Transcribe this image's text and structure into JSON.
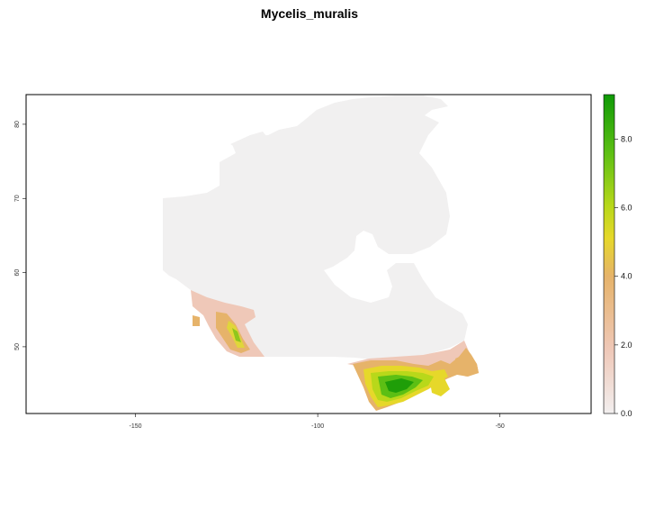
{
  "map": {
    "title": "Mycelis_muralis",
    "x_ticks": [
      "-150",
      "-100",
      "-50"
    ],
    "y_ticks": [
      "50",
      "60",
      "70",
      "80"
    ],
    "x_tick_values": [
      -150,
      -100,
      -50
    ],
    "y_tick_values": [
      50,
      60,
      70,
      80
    ],
    "extent": {
      "lon": [
        -180,
        -25
      ],
      "lat": [
        41,
        84
      ]
    },
    "colors": {
      "background": "#f1f0f0",
      "frame": "#000000",
      "low": "#f2efef",
      "mid_pink": "#efc8b8",
      "orange": "#e6b36a",
      "yellow": "#e6d82a",
      "yellow_green": "#b8d81a",
      "green": "#5cbf14",
      "dark_green": "#1f9e08"
    }
  },
  "legend": {
    "ticks": [
      "0.0",
      "2.0",
      "4.0",
      "6.0",
      "8.0"
    ],
    "tick_values": [
      0,
      2,
      4,
      6,
      8
    ],
    "range": [
      0,
      9.3
    ]
  }
}
